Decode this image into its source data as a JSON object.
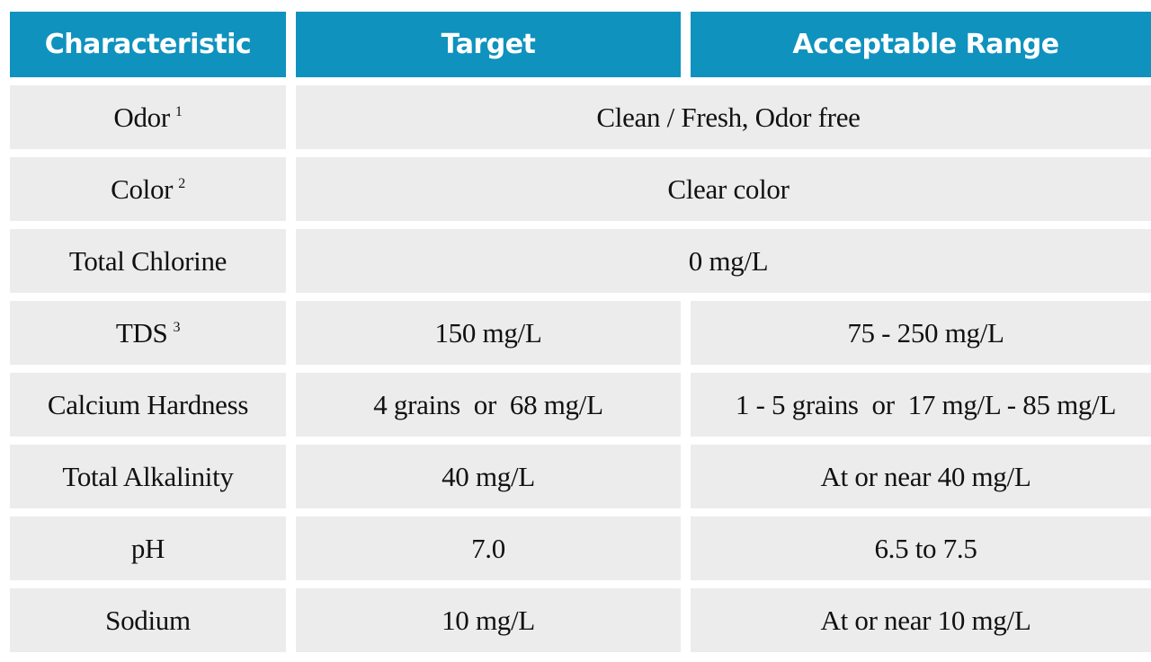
{
  "table": {
    "headers": [
      "Characteristic",
      "Target",
      "Acceptable Range"
    ],
    "rows": [
      {
        "characteristic": "Odor",
        "note": "1",
        "merged": "Clean / Fresh, Odor free"
      },
      {
        "characteristic": "Color",
        "note": "2",
        "merged": "Clear color"
      },
      {
        "characteristic": "Total Chlorine",
        "note": "",
        "merged": "0 mg/L"
      },
      {
        "characteristic": "TDS",
        "note": "3",
        "target": "150 mg/L",
        "range": "75 - 250 mg/L"
      },
      {
        "characteristic": "Calcium Hardness",
        "note": "",
        "target": "4 grains  or  68 mg/L",
        "range": "1 - 5 grains  or  17 mg/L - 85 mg/L"
      },
      {
        "characteristic": "Total Alkalinity",
        "note": "",
        "target": "40 mg/L",
        "range": "At or near 40 mg/L"
      },
      {
        "characteristic": "pH",
        "note": "",
        "target": "7.0",
        "range": "6.5 to 7.5"
      },
      {
        "characteristic": "Sodium",
        "note": "",
        "target": "10 mg/L",
        "range": "At or near 10 mg/L"
      }
    ]
  },
  "colors": {
    "header_background": "#0f92be",
    "header_text": "#ffffff",
    "cell_background": "#ececed",
    "cell_text": "#111111"
  }
}
